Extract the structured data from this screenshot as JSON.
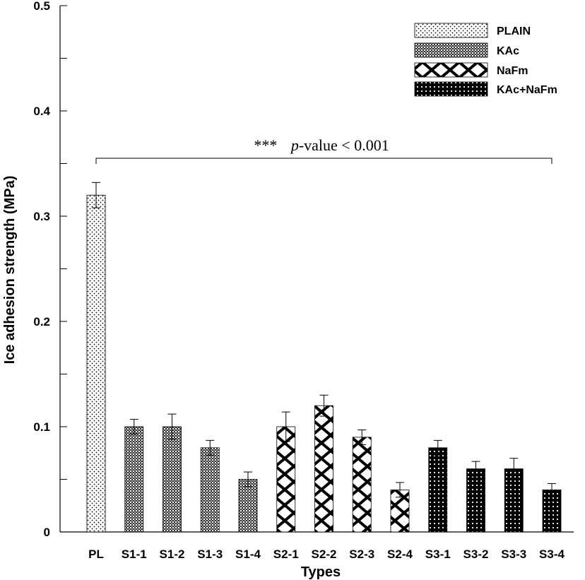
{
  "chart_data": {
    "type": "bar",
    "title": "",
    "xlabel": "Types",
    "ylabel": "Ice adhesion strength (MPa)",
    "ylim": [
      0,
      0.5
    ],
    "yticks": [
      "0",
      "0.1",
      "0.2",
      "0.3",
      "0.4",
      "0.5"
    ],
    "categories": [
      "PL",
      "S1-1",
      "S1-2",
      "S1-3",
      "S1-4",
      "S2-1",
      "S2-2",
      "S2-3",
      "S2-4",
      "S3-1",
      "S3-2",
      "S3-3",
      "S3-4"
    ],
    "values": [
      0.32,
      0.1,
      0.1,
      0.08,
      0.05,
      0.1,
      0.12,
      0.09,
      0.04,
      0.08,
      0.06,
      0.06,
      0.04
    ],
    "errors": [
      0.012,
      0.007,
      0.012,
      0.007,
      0.007,
      0.014,
      0.01,
      0.007,
      0.007,
      0.007,
      0.007,
      0.01,
      0.006
    ],
    "groups": [
      "PLAIN",
      "KAc",
      "KAc",
      "KAc",
      "KAc",
      "NaFm",
      "NaFm",
      "NaFm",
      "NaFm",
      "KAc+NaFm",
      "KAc+NaFm",
      "KAc+NaFm",
      "KAc+NaFm"
    ],
    "legend": [
      {
        "label": "PLAIN",
        "pattern": "pat-plain"
      },
      {
        "label": "KAc",
        "pattern": "pat-kac"
      },
      {
        "label": "NaFm",
        "pattern": "pat-nafm"
      },
      {
        "label": "KAc+NaFm",
        "pattern": "pat-kacnafm"
      }
    ],
    "legend_position": "top-right",
    "annotation": {
      "stars": "***",
      "p_label": "p",
      "rest": "-value < 0.001",
      "y_value": 0.355,
      "from": "PL",
      "to": "S3-4"
    }
  }
}
